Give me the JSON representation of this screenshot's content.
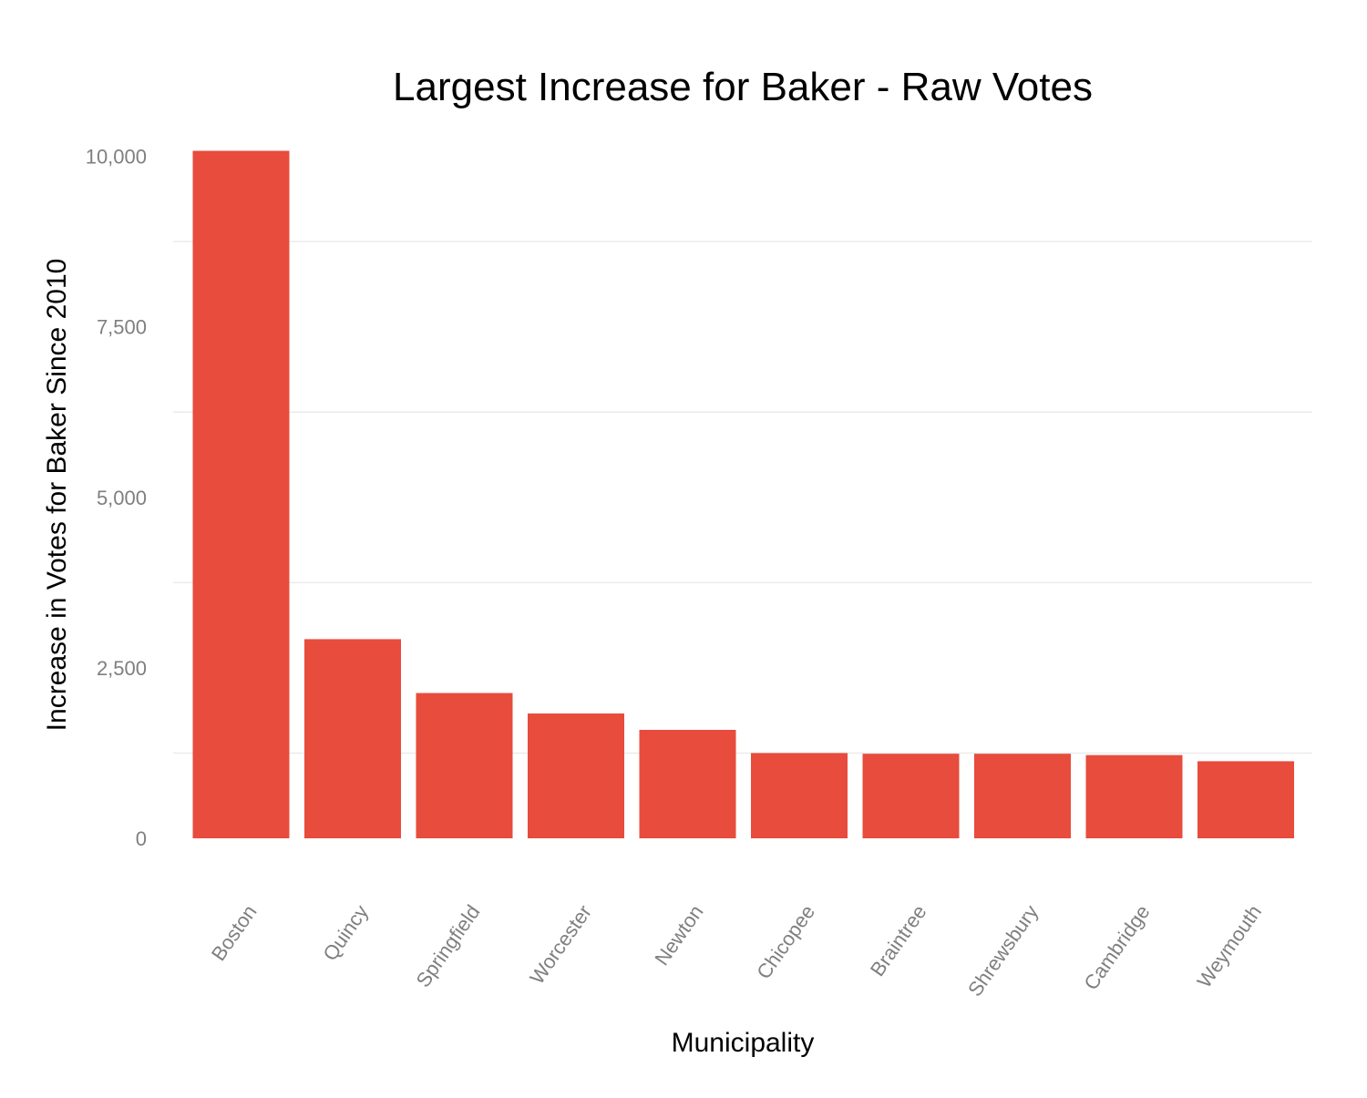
{
  "chart_data": {
    "type": "bar",
    "title": "Largest Increase for Baker - Raw Votes",
    "xlabel": "Municipality",
    "ylabel": "Increase in Votes for Baker Since 2010",
    "categories": [
      "Boston",
      "Quincy",
      "Springfield",
      "Worcester",
      "Newton",
      "Chicopee",
      "Braintree",
      "Shrewsbury",
      "Cambridge",
      "Weymouth"
    ],
    "values": [
      10080,
      2920,
      2130,
      1830,
      1590,
      1250,
      1240,
      1240,
      1220,
      1130
    ],
    "ylim": [
      0,
      10000
    ],
    "yticks": [
      0,
      2500,
      5000,
      7500,
      10000
    ],
    "ytick_labels": [
      "0",
      "2,500",
      "5,000",
      "7,500",
      "10,000"
    ],
    "grid": true,
    "legend": "none",
    "bar_color": "#e74c3c"
  }
}
